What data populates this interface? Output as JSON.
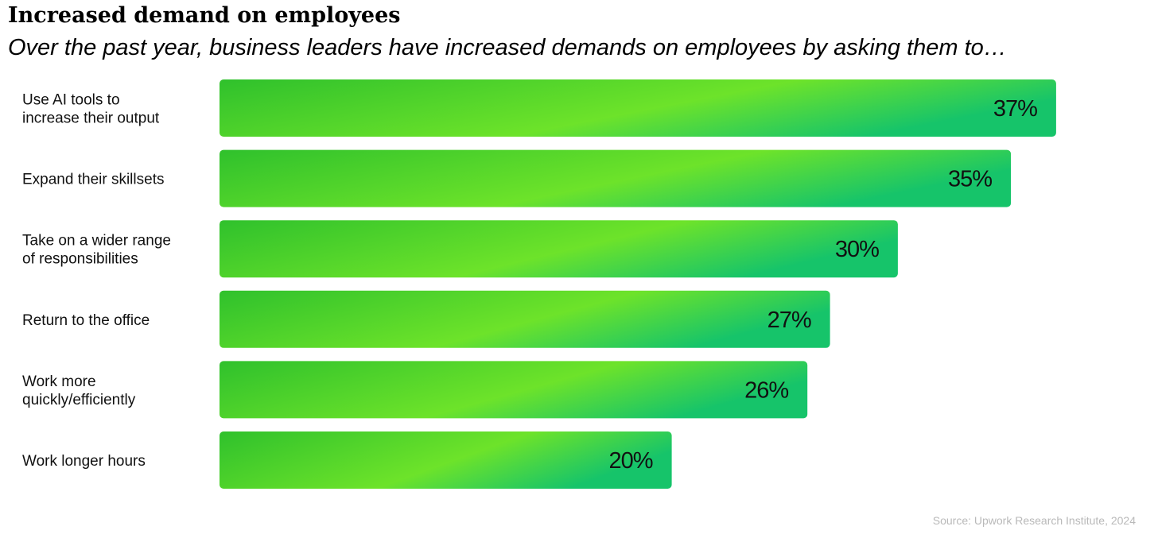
{
  "chart_data": {
    "type": "bar",
    "orientation": "horizontal",
    "title": "Increased demand on employees",
    "subtitle": "Over the past year, business leaders have increased demands on employees by asking them to…",
    "categories": [
      [
        "Use AI tools to",
        "increase their output"
      ],
      [
        "Expand their skillsets"
      ],
      [
        "Take on a wider range",
        "of responsibilities"
      ],
      [
        "Return to the office"
      ],
      [
        "Work more",
        "quickly/efficiently"
      ],
      [
        "Work longer hours"
      ]
    ],
    "values": [
      37,
      35,
      30,
      27,
      26,
      20
    ],
    "value_labels": [
      "37%",
      "35%",
      "30%",
      "27%",
      "26%",
      "20%"
    ],
    "unit": "%",
    "xlabel": "",
    "ylabel": "",
    "grid": false,
    "source": "Source: Upwork Research Institute, 2024"
  },
  "colors": {
    "bar_primary": "#2fc12c",
    "bar_light": "#6de32a",
    "bar_accent": "#16c46a",
    "text": "#111111",
    "source_text": "#b9b9b9"
  }
}
